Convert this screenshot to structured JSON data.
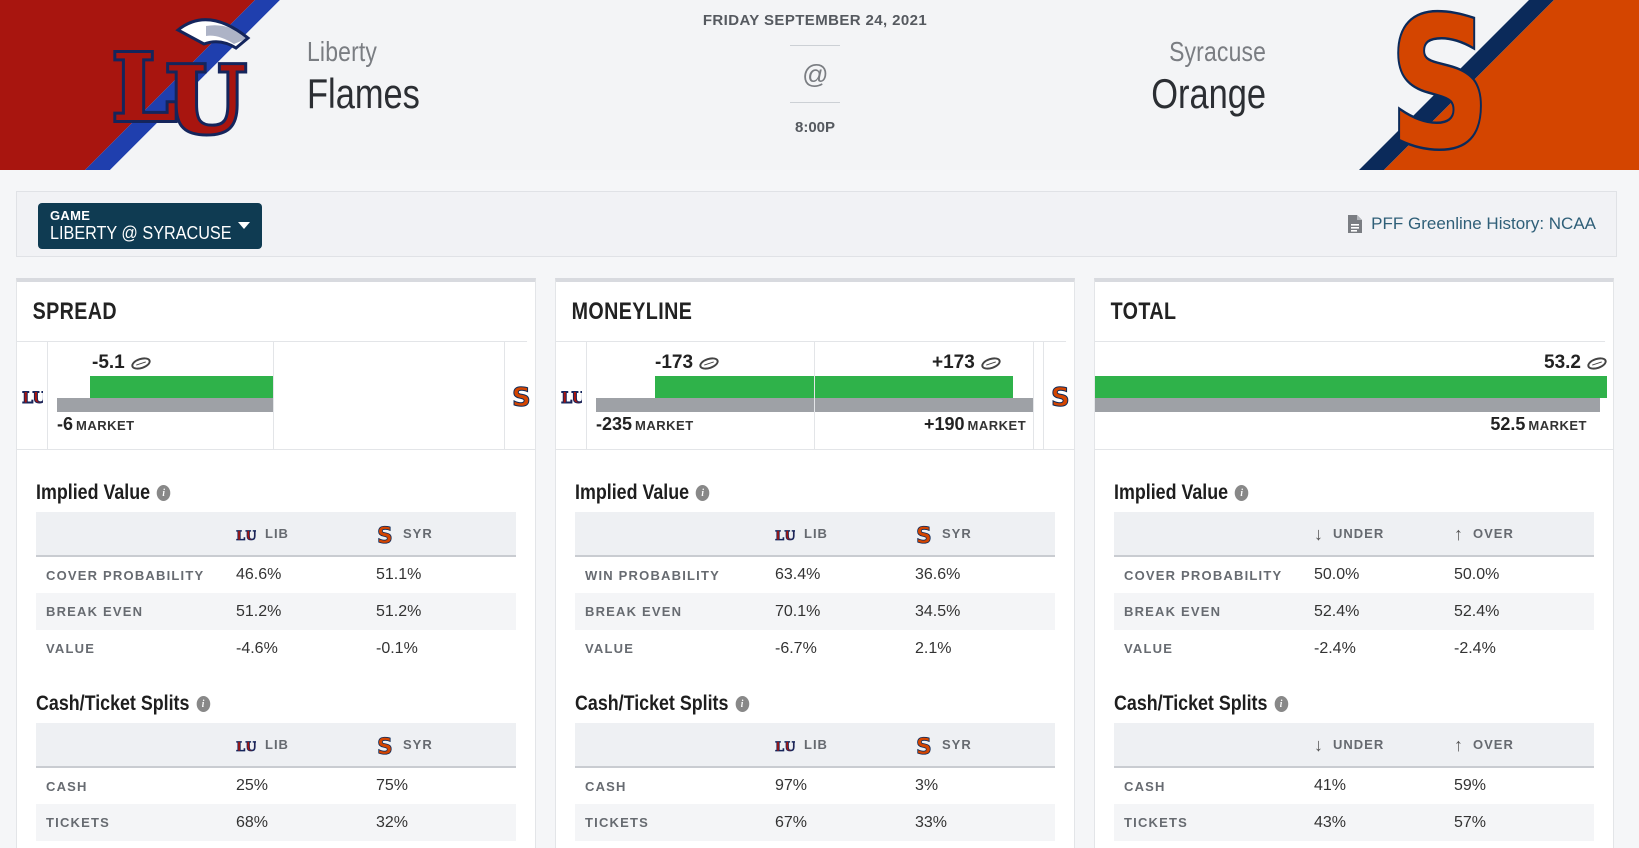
{
  "header": {
    "date": "FRIDAY SEPTEMBER 24, 2021",
    "at": "@",
    "time": "8:00P",
    "away": {
      "city": "Liberty",
      "name": "Flames"
    },
    "home": {
      "city": "Syracuse",
      "name": "Orange"
    },
    "colors": {
      "liberty_red": "#a8150f",
      "liberty_blue": "#1f3fae",
      "syracuse_orange": "#d44500",
      "syracuse_navy": "#0b2a5a"
    }
  },
  "gamebar": {
    "label": "GAME",
    "value": "LIBERTY @ SYRACUSE",
    "history_link": "PFF Greenline History: NCAA"
  },
  "panels": [
    {
      "title": "SPREAD",
      "lines": {
        "pff": "-5.1",
        "market": "-6",
        "market_label": "MARKET"
      },
      "implied": {
        "title": "Implied Value",
        "cols": [
          "LIB",
          "SYR"
        ],
        "rows": [
          {
            "k": "COVER PROBABILITY",
            "a": "46.6%",
            "b": "51.1%"
          },
          {
            "k": "BREAK EVEN",
            "a": "51.2%",
            "b": "51.2%"
          },
          {
            "k": "VALUE",
            "a": "-4.6%",
            "b": "-0.1%"
          }
        ]
      },
      "splits": {
        "title": "Cash/Ticket Splits",
        "cols": [
          "LIB",
          "SYR"
        ],
        "rows": [
          {
            "k": "CASH",
            "a": "25%",
            "b": "75%"
          },
          {
            "k": "TICKETS",
            "a": "68%",
            "b": "32%"
          }
        ]
      }
    },
    {
      "title": "MONEYLINE",
      "lines": {
        "pff_left": "-173",
        "pff_right": "+173",
        "market_left": "-235",
        "market_right": "+190",
        "market_label": "MARKET"
      },
      "implied": {
        "title": "Implied Value",
        "cols": [
          "LIB",
          "SYR"
        ],
        "rows": [
          {
            "k": "WIN PROBABILITY",
            "a": "63.4%",
            "b": "36.6%"
          },
          {
            "k": "BREAK EVEN",
            "a": "70.1%",
            "b": "34.5%"
          },
          {
            "k": "VALUE",
            "a": "-6.7%",
            "b": "2.1%"
          }
        ]
      },
      "splits": {
        "title": "Cash/Ticket Splits",
        "cols": [
          "LIB",
          "SYR"
        ],
        "rows": [
          {
            "k": "CASH",
            "a": "97%",
            "b": "3%"
          },
          {
            "k": "TICKETS",
            "a": "67%",
            "b": "33%"
          }
        ]
      }
    },
    {
      "title": "TOTAL",
      "lines": {
        "pff": "53.2",
        "market": "52.5",
        "market_label": "MARKET"
      },
      "implied": {
        "title": "Implied Value",
        "cols": [
          "UNDER",
          "OVER"
        ],
        "rows": [
          {
            "k": "COVER PROBABILITY",
            "a": "50.0%",
            "b": "50.0%"
          },
          {
            "k": "BREAK EVEN",
            "a": "52.4%",
            "b": "52.4%"
          },
          {
            "k": "VALUE",
            "a": "-2.4%",
            "b": "-2.4%"
          }
        ]
      },
      "splits": {
        "title": "Cash/Ticket Splits",
        "cols": [
          "UNDER",
          "OVER"
        ],
        "rows": [
          {
            "k": "CASH",
            "a": "41%",
            "b": "59%"
          },
          {
            "k": "TICKETS",
            "a": "43%",
            "b": "57%"
          }
        ]
      }
    }
  ]
}
